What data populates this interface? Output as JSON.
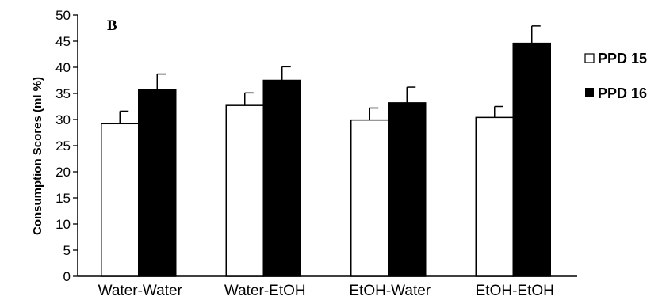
{
  "chart_data": {
    "type": "bar",
    "panel_label": "B",
    "ylabel": "Consumption Scores (ml %)",
    "xlabel": "",
    "ylim": [
      0,
      50
    ],
    "yticks": [
      0,
      5,
      10,
      15,
      20,
      25,
      30,
      35,
      40,
      45,
      50
    ],
    "categories": [
      "Water-Water",
      "Water-EtOH",
      "EtOH-Water",
      "EtOH-EtOH"
    ],
    "series": [
      {
        "name": "PPD 15",
        "color": "#ffffff",
        "values": [
          29.2,
          32.7,
          29.9,
          30.4
        ],
        "errors": [
          2.4,
          2.4,
          2.3,
          2.1
        ]
      },
      {
        "name": "PPD 16",
        "color": "#000000",
        "values": [
          35.7,
          37.5,
          33.2,
          44.6
        ],
        "errors": [
          3.0,
          2.6,
          3.0,
          3.3
        ]
      }
    ],
    "legend": "right",
    "grid": false
  }
}
